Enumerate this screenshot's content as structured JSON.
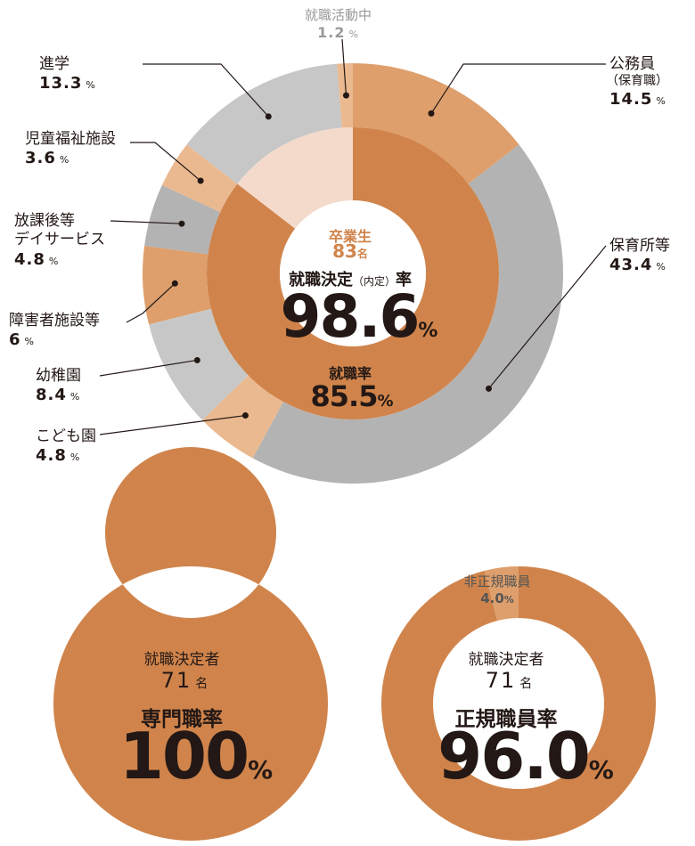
{
  "colors": {
    "orange_dark": "#D0844B",
    "orange_mid": "#DE9F6C",
    "orange_light": "#EBB990",
    "orange_pale": "#F4DACB",
    "gray_dark": "#B3B3B3",
    "gray_light": "#C7C7C7",
    "text": "#231815",
    "percent_unit": "%"
  },
  "chart_data": [
    {
      "type": "pie",
      "variant": "donut-two-ring",
      "outer_ring": {
        "series": [
          {
            "name": "公務員",
            "name_sub": "（保育職）",
            "value": 14.5,
            "color": "#DE9F6C"
          },
          {
            "name": "保育所等",
            "value": 43.4,
            "color": "#B3B3B3"
          },
          {
            "name": "こども園",
            "value": 4.8,
            "color": "#EBB990"
          },
          {
            "name": "幼稚園",
            "value": 8.4,
            "color": "#C7C7C7"
          },
          {
            "name": "障害者施設等",
            "value": 6.0,
            "color": "#DE9F6C"
          },
          {
            "name": "放課後等デイサービス",
            "name_lines": [
              "放課後等",
              "デイサービス"
            ],
            "value": 4.8,
            "color": "#B3B3B3"
          },
          {
            "name": "児童福祉施設",
            "value": 3.6,
            "color": "#EBB990"
          },
          {
            "name": "進学",
            "value": 13.3,
            "color": "#C7C7C7"
          },
          {
            "name": "就職活動中",
            "value": 1.2,
            "color": "#EBB990"
          }
        ]
      },
      "inner_ring": {
        "values": [
          85.5,
          14.5
        ],
        "colors": [
          "#D0844B",
          "#F4DACB"
        ]
      },
      "center": {
        "graduates_label": "卒業生",
        "graduates_count": "83",
        "graduates_unit": "名",
        "decision_label_a": "就職決定",
        "decision_label_paren": "（内定）",
        "decision_label_b": "率",
        "decision_rate": "98.6",
        "employment_label": "就職率",
        "employment_rate": "85.5"
      }
    },
    {
      "type": "pie",
      "variant": "donut",
      "series": [
        {
          "name": "専門職率",
          "value": 100,
          "color": "#D0844B"
        }
      ],
      "center": {
        "people_label": "就職決定者",
        "people_count": "71",
        "people_unit": "名",
        "rate_label": "専門職率",
        "rate": "100"
      }
    },
    {
      "type": "pie",
      "variant": "donut",
      "series": [
        {
          "name": "正規職員率",
          "value": 96.0,
          "color": "#D0844B"
        },
        {
          "name": "非正規職員",
          "value": 4.0,
          "color": "#DE9F6C"
        }
      ],
      "small_label": {
        "name": "非正規職員",
        "value": "4.0"
      },
      "center": {
        "people_label": "就職決定者",
        "people_count": "71",
        "people_unit": "名",
        "rate_label": "正規職員率",
        "rate": "96.0"
      }
    }
  ]
}
